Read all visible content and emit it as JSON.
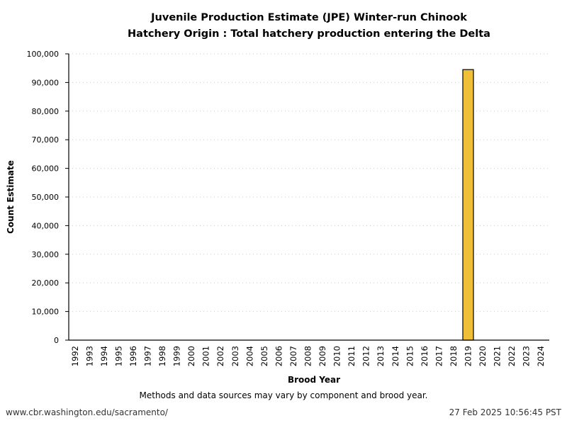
{
  "chart_data": {
    "type": "bar",
    "title": "Juvenile Production Estimate (JPE) Winter-run Chinook",
    "subtitle": "Hatchery Origin : Total hatchery production entering the Delta",
    "xlabel": "Brood Year",
    "ylabel": "Count Estimate",
    "ylim": [
      0,
      100000
    ],
    "yticks": [
      "0",
      "10,000",
      "20,000",
      "30,000",
      "40,000",
      "50,000",
      "60,000",
      "70,000",
      "80,000",
      "90,000",
      "100,000"
    ],
    "ytick_values": [
      0,
      10000,
      20000,
      30000,
      40000,
      50000,
      60000,
      70000,
      80000,
      90000,
      100000
    ],
    "categories": [
      "1992",
      "1993",
      "1994",
      "1995",
      "1996",
      "1997",
      "1998",
      "1999",
      "2000",
      "2001",
      "2002",
      "2003",
      "2004",
      "2005",
      "2006",
      "2007",
      "2008",
      "2009",
      "2010",
      "2011",
      "2012",
      "2013",
      "2014",
      "2015",
      "2016",
      "2017",
      "2018",
      "2019",
      "2020",
      "2021",
      "2022",
      "2023",
      "2024"
    ],
    "values": [
      null,
      null,
      null,
      null,
      null,
      null,
      null,
      null,
      null,
      null,
      null,
      null,
      null,
      null,
      null,
      null,
      null,
      null,
      null,
      null,
      null,
      null,
      null,
      null,
      null,
      null,
      null,
      94500,
      null,
      null,
      null,
      null,
      null
    ],
    "grid": "horizontal dotted",
    "bar_color": "#EFBF38",
    "bar_edge": "#000000"
  },
  "footer": {
    "note": "Methods and data sources may vary by component and brood year.",
    "source": "www.cbr.washington.edu/sacramento/",
    "timestamp": "27 Feb 2025 10:56:45 PST"
  }
}
